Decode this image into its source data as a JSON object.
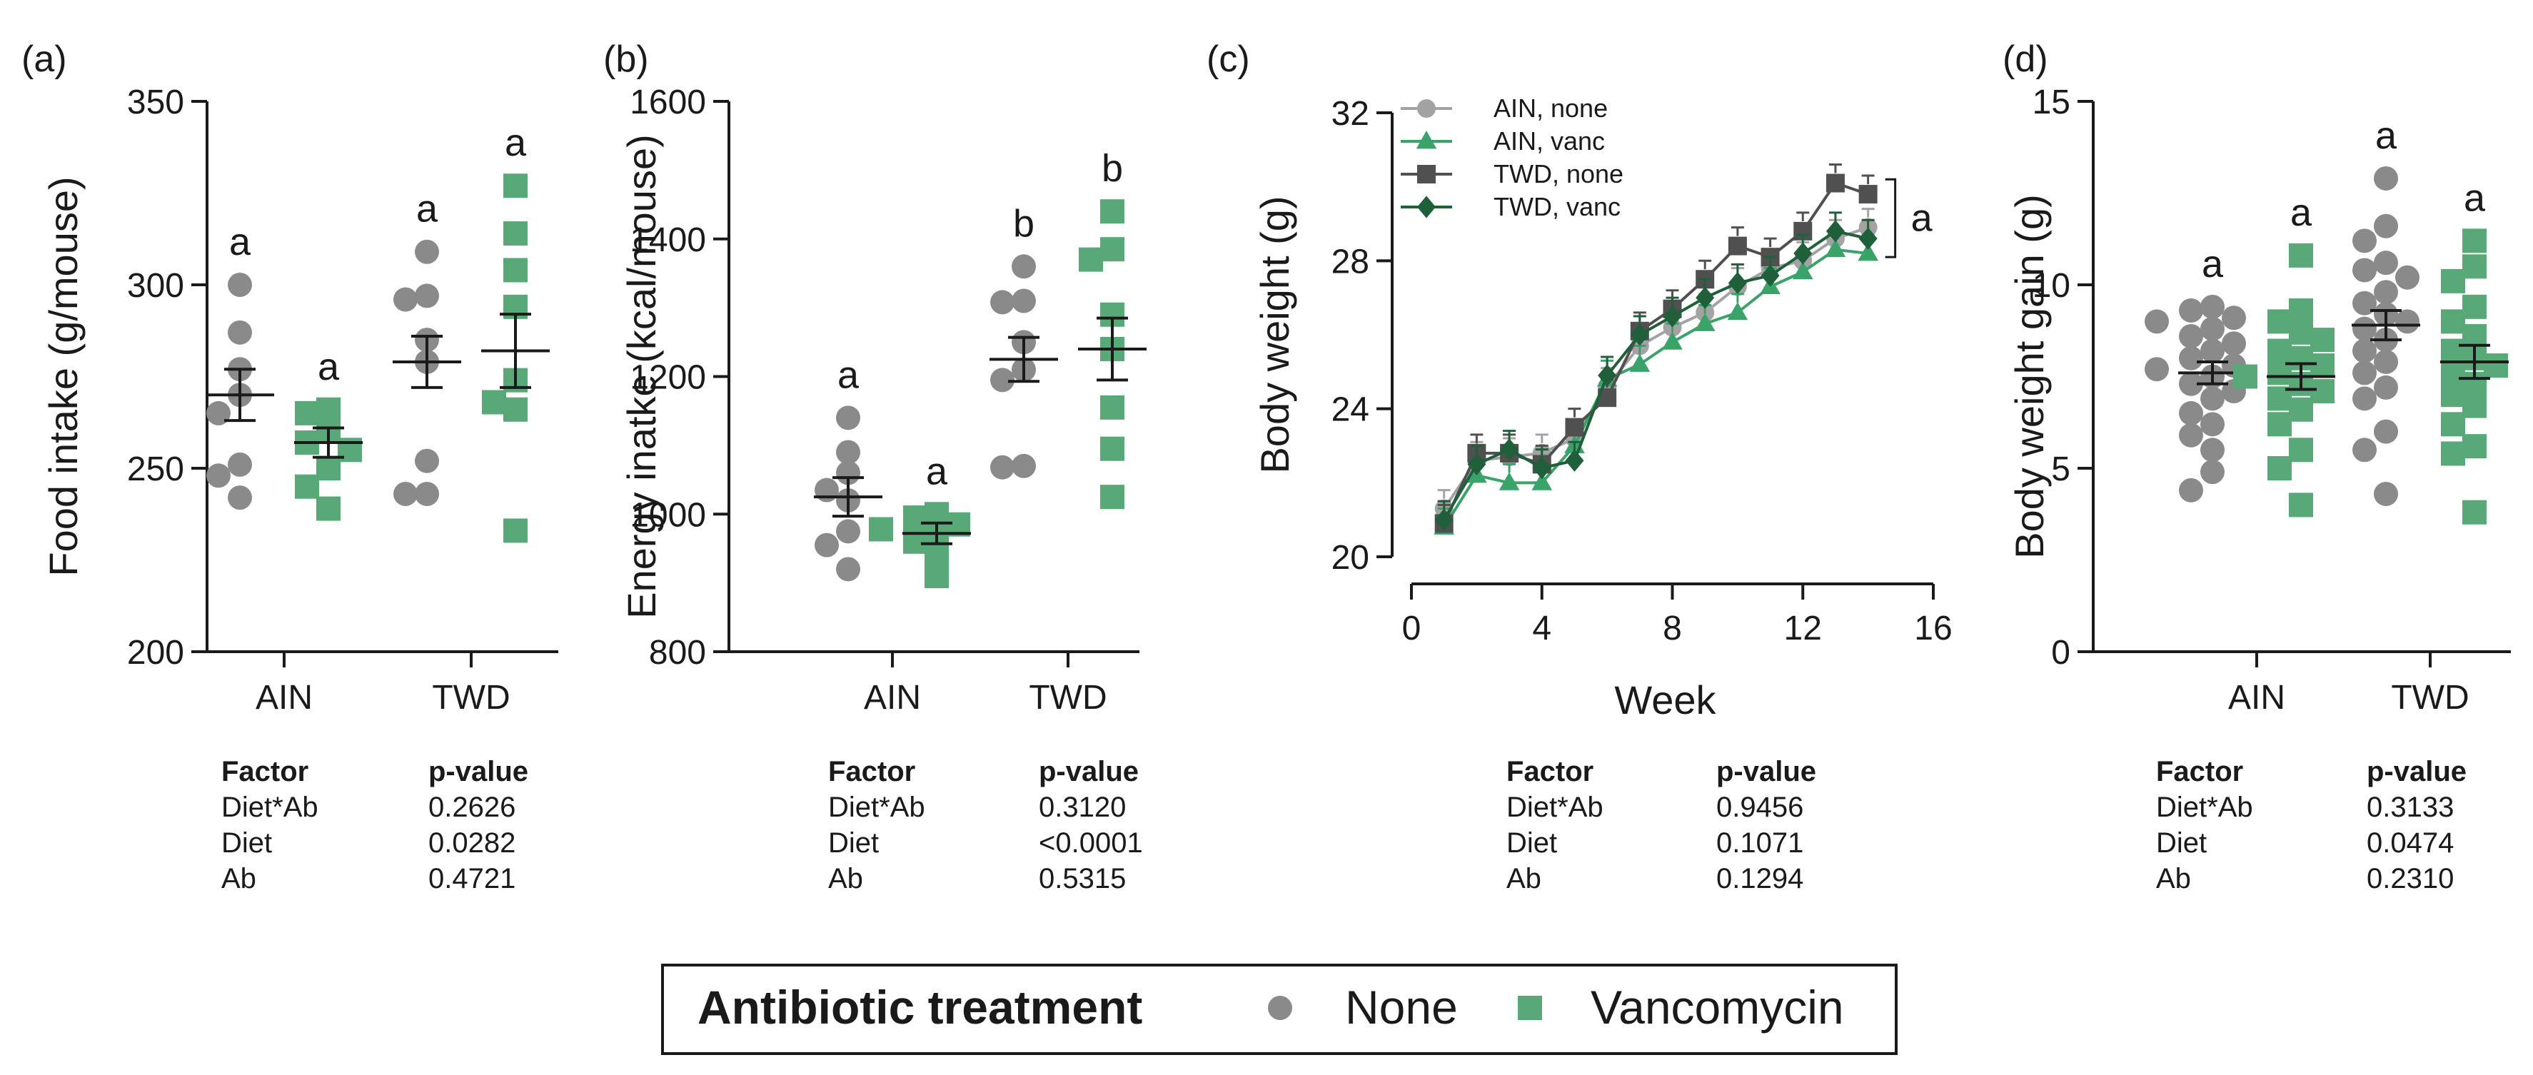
{
  "colors": {
    "none": "#8a8a8a",
    "vanc": "#58a878",
    "twd_none": "#4d4d4d",
    "twd_vanc": "#1f5f3a",
    "axis": "#1a1a1a"
  },
  "chart_data": [
    {
      "id": "a",
      "type": "scatter",
      "panel_label": "(a)",
      "ylabel": "Food intake (g/mouse)",
      "xlabel": "",
      "ylim": [
        200,
        350
      ],
      "yticks": [
        "200",
        "250",
        "300",
        "350"
      ],
      "ytick_values": [
        200,
        250,
        300,
        350
      ],
      "categories": [
        "AIN",
        "TWD"
      ],
      "groups": [
        {
          "category": "AIN",
          "series": "None",
          "letter": "a",
          "mean": 270,
          "sem": 7,
          "points": [
            300,
            287,
            277,
            270,
            265,
            251,
            248,
            242
          ]
        },
        {
          "category": "AIN",
          "series": "Vancomycin",
          "letter": "a",
          "mean": 257,
          "sem": 4,
          "points": [
            266,
            265,
            260,
            257,
            255,
            250,
            245,
            239
          ]
        },
        {
          "category": "TWD",
          "series": "None",
          "letter": "a",
          "mean": 279,
          "sem": 7,
          "points": [
            309,
            297,
            296,
            285,
            279,
            252,
            243,
            243
          ]
        },
        {
          "category": "TWD",
          "series": "Vancomycin",
          "letter": "a",
          "mean": 282,
          "sem": 10,
          "points": [
            327,
            314,
            304,
            294,
            274,
            266,
            268,
            233
          ]
        }
      ],
      "table": {
        "headers": [
          "Factor",
          "p-value"
        ],
        "rows": [
          [
            "Diet*Ab",
            "0.2626"
          ],
          [
            "Diet",
            "0.0282"
          ],
          [
            "Ab",
            "0.4721"
          ]
        ]
      }
    },
    {
      "id": "b",
      "type": "scatter",
      "panel_label": "(b)",
      "ylabel": "Energy inatke (kcal/mouse)",
      "xlabel": "",
      "ylim": [
        800,
        1600
      ],
      "yticks": [
        "800",
        "1000",
        "1200",
        "1400",
        "1600"
      ],
      "ytick_values": [
        800,
        1000,
        1200,
        1400,
        1600
      ],
      "categories": [
        "AIN",
        "TWD"
      ],
      "groups": [
        {
          "category": "AIN",
          "series": "None",
          "letter": "a",
          "mean": 1025,
          "sem": 28,
          "points": [
            1140,
            1090,
            1060,
            1035,
            1020,
            975,
            955,
            920
          ]
        },
        {
          "category": "AIN",
          "series": "Vancomycin",
          "letter": "a",
          "mean": 972,
          "sem": 15,
          "points": [
            1000,
            995,
            985,
            978,
            970,
            960,
            940,
            910
          ]
        },
        {
          "category": "TWD",
          "series": "None",
          "letter": "b",
          "mean": 1225,
          "sem": 32,
          "points": [
            1360,
            1310,
            1308,
            1250,
            1210,
            1195,
            1070,
            1068
          ]
        },
        {
          "category": "TWD",
          "series": "Vancomycin",
          "letter": "b",
          "mean": 1240,
          "sem": 45,
          "points": [
            1440,
            1385,
            1370,
            1290,
            1240,
            1155,
            1095,
            1025
          ]
        }
      ],
      "table": {
        "headers": [
          "Factor",
          "p-value"
        ],
        "rows": [
          [
            "Diet*Ab",
            "0.3120"
          ],
          [
            "Diet",
            "<0.0001"
          ],
          [
            "Ab",
            "0.5315"
          ]
        ]
      }
    },
    {
      "id": "c",
      "type": "line",
      "panel_label": "(c)",
      "ylabel": "Body weight (g)",
      "xlabel": "Week",
      "xlim": [
        0,
        16
      ],
      "xticks": [
        "0",
        "4",
        "8",
        "12",
        "16"
      ],
      "xtick_values": [
        0,
        4,
        8,
        12,
        16
      ],
      "ylim": [
        20,
        32
      ],
      "yticks": [
        "20",
        "24",
        "28",
        "32"
      ],
      "ytick_values": [
        20,
        24,
        28,
        32
      ],
      "x": [
        1,
        2,
        3,
        4,
        5,
        6,
        7,
        8,
        9,
        10,
        11,
        12,
        13,
        14
      ],
      "series": [
        {
          "name": "AIN, none",
          "marker": "circle",
          "color": "#a3a3a3",
          "values": [
            21.3,
            22.6,
            22.7,
            22.8,
            23.2,
            24.6,
            25.7,
            26.2,
            26.6,
            27.3,
            27.8,
            28.0,
            28.6,
            28.9
          ]
        },
        {
          "name": "AIN, vanc",
          "marker": "triangle",
          "color": "#3aa36a",
          "values": [
            20.8,
            22.2,
            22.0,
            22.0,
            23.0,
            24.8,
            25.2,
            25.8,
            26.3,
            26.6,
            27.3,
            27.7,
            28.3,
            28.2
          ]
        },
        {
          "name": "TWD, none",
          "marker": "square",
          "color": "#505050",
          "values": [
            20.9,
            22.8,
            22.8,
            22.5,
            23.5,
            24.3,
            26.1,
            26.7,
            27.5,
            28.4,
            28.1,
            28.8,
            30.1,
            29.8
          ]
        },
        {
          "name": "TWD, vanc",
          "marker": "diamond",
          "color": "#1f5f3a",
          "values": [
            21.0,
            22.5,
            22.9,
            22.4,
            22.6,
            24.9,
            26.0,
            26.5,
            27.0,
            27.4,
            27.6,
            28.2,
            28.8,
            28.6
          ]
        }
      ],
      "bracket_letter": "a",
      "table": {
        "headers": [
          "Factor",
          "p-value"
        ],
        "rows": [
          [
            "Diet*Ab",
            "0.9456"
          ],
          [
            "Diet",
            "0.1071"
          ],
          [
            "Ab",
            "0.1294"
          ]
        ]
      }
    },
    {
      "id": "d",
      "type": "scatter",
      "panel_label": "(d)",
      "ylabel": "Body weight gain (g)",
      "xlabel": "",
      "ylim": [
        0,
        15
      ],
      "yticks": [
        "0",
        "5",
        "10",
        "15"
      ],
      "ytick_values": [
        0,
        5,
        10,
        15
      ],
      "categories": [
        "AIN",
        "TWD"
      ],
      "groups": [
        {
          "category": "AIN",
          "series": "None",
          "letter": "a",
          "mean": 7.6,
          "sem": 0.3,
          "points": [
            9.4,
            9.3,
            9.1,
            9.0,
            8.8,
            8.6,
            8.4,
            8.2,
            8.0,
            7.8,
            7.7,
            7.5,
            7.3,
            7.1,
            6.9,
            6.5,
            6.2,
            5.9,
            5.5,
            4.9,
            4.4
          ]
        },
        {
          "category": "AIN",
          "series": "Vancomycin",
          "letter": "a",
          "mean": 7.5,
          "sem": 0.35,
          "points": [
            10.8,
            9.3,
            9.0,
            8.7,
            8.5,
            8.2,
            8.0,
            7.8,
            7.6,
            7.5,
            7.3,
            7.1,
            6.9,
            6.6,
            6.2,
            5.5,
            5.0,
            4.0
          ]
        },
        {
          "category": "TWD",
          "series": "None",
          "letter": "a",
          "mean": 8.9,
          "sem": 0.4,
          "points": [
            12.9,
            11.6,
            11.2,
            10.6,
            10.4,
            10.2,
            9.8,
            9.5,
            9.2,
            9.0,
            8.8,
            8.5,
            8.2,
            7.9,
            7.6,
            7.2,
            6.9,
            6.0,
            5.5,
            4.3
          ]
        },
        {
          "category": "TWD",
          "series": "Vancomycin",
          "letter": "a",
          "mean": 7.9,
          "sem": 0.45,
          "points": [
            11.2,
            10.5,
            10.1,
            9.4,
            9.0,
            8.6,
            8.2,
            8.0,
            7.8,
            7.6,
            7.3,
            7.0,
            6.7,
            6.2,
            5.6,
            5.4,
            3.8
          ]
        }
      ],
      "table": {
        "headers": [
          "Factor",
          "p-value"
        ],
        "rows": [
          [
            "Diet*Ab",
            "0.3133"
          ],
          [
            "Diet",
            "0.0474"
          ],
          [
            "Ab",
            "0.2310"
          ]
        ]
      }
    }
  ],
  "legend": {
    "title": "Antibiotic treatment",
    "items": [
      {
        "label": "None",
        "marker": "circle"
      },
      {
        "label": "Vancomycin",
        "marker": "square"
      }
    ]
  }
}
